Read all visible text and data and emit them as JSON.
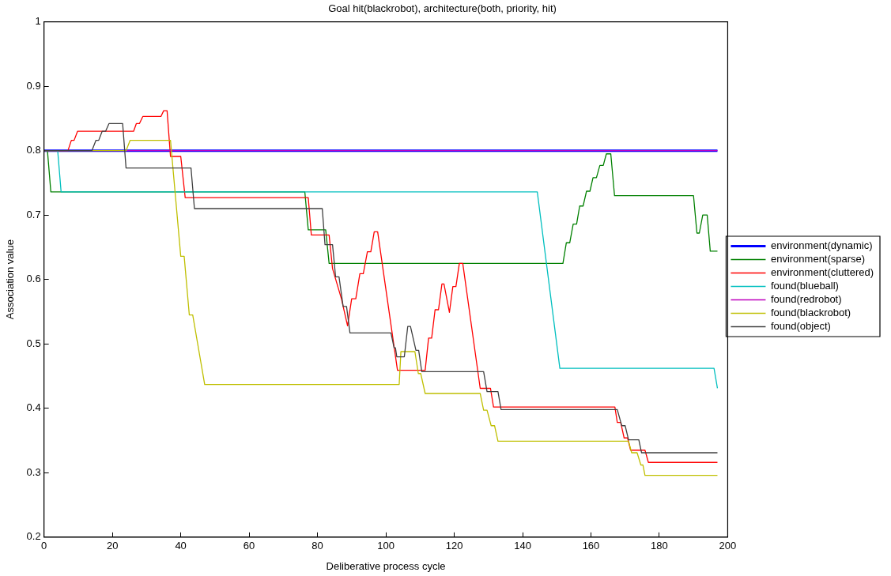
{
  "chart_data": {
    "type": "line",
    "title": "Goal hit(blackrobot), architecture(both, priority, hit)",
    "xlabel": "Deliberative process cycle",
    "ylabel": "Association value",
    "xlim": [
      0,
      200
    ],
    "xticks": [
      0,
      20,
      40,
      60,
      80,
      100,
      120,
      140,
      160,
      180,
      200
    ],
    "ylim": [
      0.2,
      1
    ],
    "yticks": [
      0.2,
      0.3,
      0.4,
      0.5,
      0.6,
      0.7,
      0.8,
      0.9,
      1
    ],
    "grid": false,
    "legend": "right",
    "marker": "none",
    "line_style": "solid",
    "series": [
      {
        "name": "environment(dynamic)",
        "color": "#0000ff",
        "x": [
          0,
          197
        ],
        "values": [
          0.8,
          0.8
        ]
      },
      {
        "name": "environment(sparse)",
        "color": "#008000",
        "x": [
          1,
          2,
          76.3,
          77.3,
          82.4,
          83.4,
          151.8,
          152.8,
          153.8,
          154.8,
          155.8,
          156.7,
          157.7,
          158.7,
          159.7,
          160.6,
          161.6,
          162.6,
          163.6,
          164.5,
          165.8,
          166.9,
          190,
          191,
          191.7,
          192.7,
          194,
          194.9,
          197
        ],
        "values": [
          0.8,
          0.736,
          0.736,
          0.677,
          0.677,
          0.625,
          0.625,
          0.657,
          0.657,
          0.686,
          0.686,
          0.714,
          0.714,
          0.737,
          0.737,
          0.758,
          0.758,
          0.777,
          0.777,
          0.795,
          0.795,
          0.73,
          0.73,
          0.672,
          0.672,
          0.7,
          0.7,
          0.644,
          0.644
        ]
      },
      {
        "name": "environment(cluttered)",
        "color": "#ff0000",
        "x": [
          0,
          7,
          8,
          8.8,
          9.8,
          26.2,
          27,
          27.9,
          28.9,
          34.2,
          35,
          36,
          37,
          40,
          41.3,
          77.3,
          78.2,
          83.4,
          84.4,
          87,
          88.8,
          90,
          91.2,
          92.4,
          93.4,
          94.6,
          95.6,
          96.6,
          97.6,
          103.4,
          111.5,
          112.5,
          113.4,
          114.4,
          115.4,
          116.4,
          117,
          118.6,
          119.6,
          120.5,
          121.5,
          122.5,
          127.6,
          130.6,
          131.5,
          167,
          167.7,
          168.7,
          169.7,
          170.7,
          171.6,
          175.8,
          176.8,
          197
        ],
        "values": [
          0.8,
          0.8,
          0.816,
          0.816,
          0.83,
          0.83,
          0.842,
          0.842,
          0.853,
          0.853,
          0.862,
          0.862,
          0.791,
          0.791,
          0.727,
          0.727,
          0.669,
          0.669,
          0.617,
          0.57,
          0.528,
          0.57,
          0.57,
          0.609,
          0.609,
          0.643,
          0.643,
          0.674,
          0.674,
          0.459,
          0.459,
          0.509,
          0.509,
          0.553,
          0.553,
          0.593,
          0.593,
          0.549,
          0.589,
          0.589,
          0.625,
          0.625,
          0.431,
          0.431,
          0.402,
          0.402,
          0.378,
          0.378,
          0.354,
          0.354,
          0.335,
          0.335,
          0.316,
          0.316
        ]
      },
      {
        "name": "found(blueball)",
        "color": "#00bfbf",
        "x": [
          0,
          4,
          5,
          144.3,
          150.9,
          196,
          197
        ],
        "values": [
          0.8,
          0.8,
          0.736,
          0.736,
          0.462,
          0.462,
          0.431
        ]
      },
      {
        "name": "found(redrobot)",
        "color": "#bf00bf",
        "x": [
          0,
          197
        ],
        "values": [
          0.8,
          0.8
        ]
      },
      {
        "name": "found(blackrobot)",
        "color": "#bfbf00",
        "x": [
          0,
          24,
          25.2,
          37,
          40,
          41,
          42.5,
          43.5,
          47,
          103.9,
          104.4,
          108.5,
          109.5,
          110.2,
          111.5,
          127.6,
          128.6,
          129.6,
          130.8,
          131.8,
          132.8,
          171,
          171.9,
          173.5,
          174.6,
          175.2,
          175.8,
          197
        ],
        "values": [
          0.8,
          0.8,
          0.816,
          0.816,
          0.636,
          0.636,
          0.545,
          0.545,
          0.437,
          0.437,
          0.488,
          0.488,
          0.454,
          0.454,
          0.423,
          0.423,
          0.397,
          0.397,
          0.373,
          0.373,
          0.349,
          0.349,
          0.331,
          0.331,
          0.312,
          0.312,
          0.296,
          0.296
        ]
      },
      {
        "name": "found(object)",
        "color": "#404040",
        "x": [
          0,
          14,
          15.2,
          16,
          17,
          18,
          19,
          23,
          24,
          43,
          44,
          81.4,
          82.2,
          84.4,
          85.3,
          86.3,
          87.5,
          88.5,
          89.5,
          101.5,
          102.4,
          102.8,
          103.2,
          105.4,
          106.4,
          107.2,
          108.8,
          109.6,
          110.5,
          128.6,
          129.6,
          132.8,
          133.7,
          167.7,
          169,
          170,
          171,
          174,
          174.8,
          197
        ],
        "values": [
          0.8,
          0.8,
          0.816,
          0.816,
          0.83,
          0.83,
          0.842,
          0.842,
          0.773,
          0.773,
          0.71,
          0.71,
          0.654,
          0.654,
          0.604,
          0.604,
          0.558,
          0.558,
          0.517,
          0.517,
          0.494,
          0.494,
          0.48,
          0.48,
          0.527,
          0.527,
          0.49,
          0.49,
          0.457,
          0.457,
          0.426,
          0.426,
          0.398,
          0.398,
          0.373,
          0.373,
          0.351,
          0.351,
          0.331,
          0.331
        ]
      }
    ]
  }
}
